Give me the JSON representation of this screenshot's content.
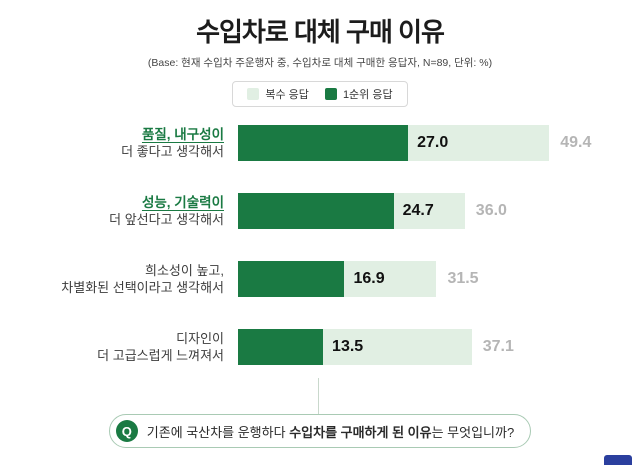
{
  "header": {
    "title": "수입차로 대체 구매 이유",
    "subtitle": "(Base: 현재 수입차 주운행자 중, 수입차로 대체 구매한 응답자, N=89, 단위: %)"
  },
  "legend": {
    "multi_label": "복수 응답",
    "first_label": "1순위 응답"
  },
  "colors": {
    "dark_green": "#1a7a43",
    "light_green": "#e1efe3",
    "gray_value": "#b5b5b5"
  },
  "chart_data": {
    "type": "bar",
    "orientation": "horizontal",
    "unit": "%",
    "title": "수입차로 대체 구매 이유",
    "categories": [
      "품질, 내구성이 더 좋다고 생각해서",
      "성능, 기술력이 더 앞선다고 생각해서",
      "희소성이 높고, 차별화된 선택이라고 생각해서",
      "디자인이 더 고급스럽게 느껴져서"
    ],
    "series": [
      {
        "name": "복수 응답",
        "values": [
          49.4,
          36.0,
          31.5,
          37.1
        ]
      },
      {
        "name": "1순위 응답",
        "values": [
          27.0,
          24.7,
          16.9,
          13.5
        ]
      }
    ],
    "xlim": [
      0,
      55
    ],
    "legend_position": "top",
    "grid": false
  },
  "rows": [
    {
      "label_line1": "품질, 내구성이",
      "label_line2": "더 좋다고 생각해서",
      "emphasis": true,
      "first_value": 27.0,
      "first_label": "27.0",
      "multi_value": 49.4,
      "multi_label": "49.4"
    },
    {
      "label_line1": "성능, 기술력이",
      "label_line2": "더 앞선다고 생각해서",
      "emphasis": true,
      "first_value": 24.7,
      "first_label": "24.7",
      "multi_value": 36.0,
      "multi_label": "36.0"
    },
    {
      "label_line1": "희소성이 높고,",
      "label_line2": "차별화된 선택이라고 생각해서",
      "emphasis": false,
      "first_value": 16.9,
      "first_label": "16.9",
      "multi_value": 31.5,
      "multi_label": "31.5"
    },
    {
      "label_line1": "디자인이",
      "label_line2": "더 고급스럽게 느껴져서",
      "emphasis": false,
      "first_value": 13.5,
      "first_label": "13.5",
      "multi_value": 37.1,
      "multi_label": "37.1"
    }
  ],
  "question": {
    "badge": "Q",
    "segments": [
      {
        "text": "기존에 국산차를 운행하다 ",
        "bold": false
      },
      {
        "text": "수입차를 구매하게 된 이유",
        "bold": true
      },
      {
        "text": "는 무엇입니까?",
        "bold": false
      }
    ]
  }
}
